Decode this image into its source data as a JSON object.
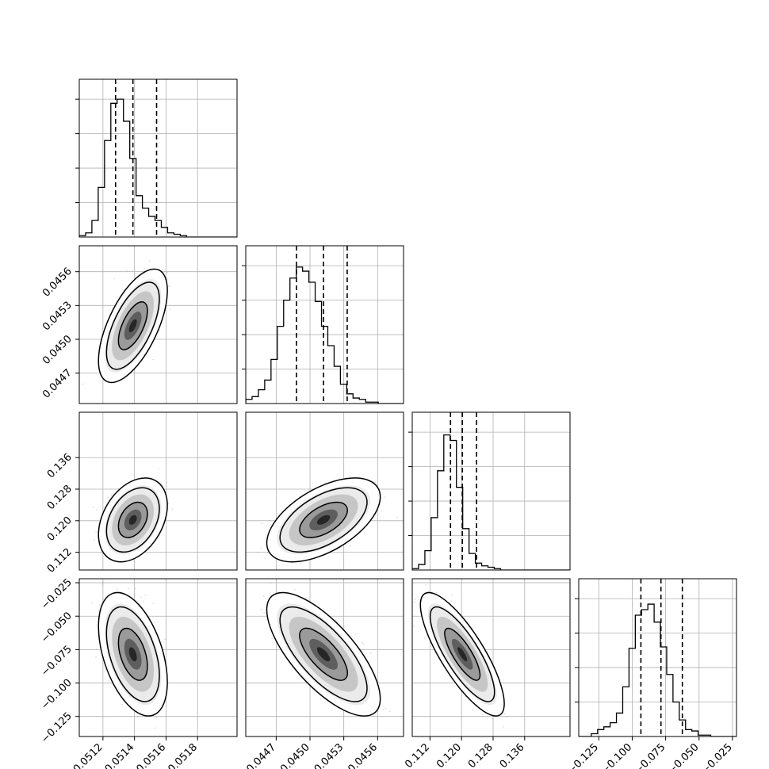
{
  "chart_data": {
    "type": "corner",
    "title": "",
    "n_params": 4,
    "grid": true,
    "parameters": [
      {
        "name": "",
        "range": [
          0.05105,
          0.05205
        ],
        "ticks": [
          0.0512,
          0.0514,
          0.0516,
          0.0518
        ],
        "tick_labels": [
          "0.0512",
          "0.0514",
          "0.0516",
          "0.0518"
        ],
        "quantiles": [
          0.05128,
          0.05139,
          0.05154
        ],
        "histogram": {
          "bin_start": 0.05105,
          "bin_width": 4e-05,
          "counts": [
            0.01,
            0.03,
            0.12,
            0.36,
            0.7,
            0.97,
            1.0,
            0.84,
            0.57,
            0.3,
            0.21,
            0.15,
            0.12,
            0.07,
            0.03,
            0.02,
            0.01,
            0.0,
            0.0,
            0.0,
            0.0,
            0.0,
            0.0,
            0.0,
            0.0
          ]
        }
      },
      {
        "name": "",
        "range": [
          0.04443,
          0.04583
        ],
        "ticks": [
          0.0447,
          0.045,
          0.0453,
          0.0456
        ],
        "tick_labels": [
          "0.0447",
          "0.0450",
          "0.0453",
          "0.0456"
        ],
        "quantiles": [
          0.04488,
          0.04512,
          0.04533
        ],
        "histogram": {
          "bin_start": 0.04443,
          "bin_width": 5.6e-05,
          "counts": [
            0.03,
            0.05,
            0.1,
            0.17,
            0.32,
            0.56,
            0.75,
            0.91,
            0.99,
            0.96,
            0.88,
            0.74,
            0.56,
            0.42,
            0.27,
            0.14,
            0.07,
            0.04,
            0.03,
            0.01,
            0.01,
            0.0,
            0.0,
            0.0,
            0.0
          ]
        }
      },
      {
        "name": "",
        "range": [
          0.1075,
          0.1475
        ],
        "ticks": [
          0.112,
          0.12,
          0.128,
          0.136
        ],
        "tick_labels": [
          "0.112",
          "0.120",
          "0.128",
          "0.136"
        ],
        "quantiles": [
          0.1172,
          0.1202,
          0.1238
        ],
        "histogram": {
          "bin_start": 0.1075,
          "bin_width": 0.0016,
          "counts": [
            0.01,
            0.04,
            0.14,
            0.38,
            0.72,
            0.98,
            0.94,
            0.6,
            0.3,
            0.12,
            0.05,
            0.03,
            0.02,
            0.01,
            0.0,
            0.0,
            0.0,
            0.0,
            0.0,
            0.0,
            0.0,
            0.0,
            0.0,
            0.0,
            0.0
          ]
        }
      },
      {
        "name": "",
        "range": [
          -0.14,
          -0.022
        ],
        "ticks": [
          -0.125,
          -0.1,
          -0.075,
          -0.05,
          -0.025
        ],
        "tick_labels": [
          "−0.125",
          "−0.100",
          "−0.075",
          "−0.050",
          "−0.025"
        ],
        "quantiles": [
          -0.0935,
          -0.0785,
          -0.0625
        ],
        "histogram": {
          "bin_start": -0.14,
          "bin_width": 0.0047,
          "counts": [
            0.0,
            0.0,
            0.02,
            0.05,
            0.07,
            0.1,
            0.17,
            0.36,
            0.64,
            0.88,
            0.92,
            0.96,
            0.83,
            0.65,
            0.45,
            0.25,
            0.12,
            0.05,
            0.04,
            0.01,
            0.01,
            0.0,
            0.0,
            0.0,
            0.0
          ]
        }
      }
    ],
    "pairs": [
      {
        "x": 0,
        "y": 1,
        "mean": [
          0.05139,
          0.04512
        ],
        "std": [
          7.8e-05,
          0.00018
        ],
        "corr": 0.62
      },
      {
        "x": 0,
        "y": 2,
        "mean": [
          0.05139,
          0.1202
        ],
        "std": [
          7.8e-05,
          0.0038
        ],
        "corr": 0.35
      },
      {
        "x": 1,
        "y": 2,
        "mean": [
          0.04512,
          0.1202
        ],
        "std": [
          0.00018,
          0.0038
        ],
        "corr": 0.55
      },
      {
        "x": 0,
        "y": 3,
        "mean": [
          0.05139,
          -0.0785
        ],
        "std": [
          7.8e-05,
          0.0165
        ],
        "corr": -0.45
      },
      {
        "x": 1,
        "y": 3,
        "mean": [
          0.04512,
          -0.0785
        ],
        "std": [
          0.00018,
          0.0165
        ],
        "corr": -0.72
      },
      {
        "x": 2,
        "y": 3,
        "mean": [
          0.1202,
          -0.0785
        ],
        "std": [
          0.0038,
          0.0165
        ],
        "corr": -0.8
      }
    ],
    "contour_levels": [
      0.5,
      0.9,
      0.98
    ]
  }
}
